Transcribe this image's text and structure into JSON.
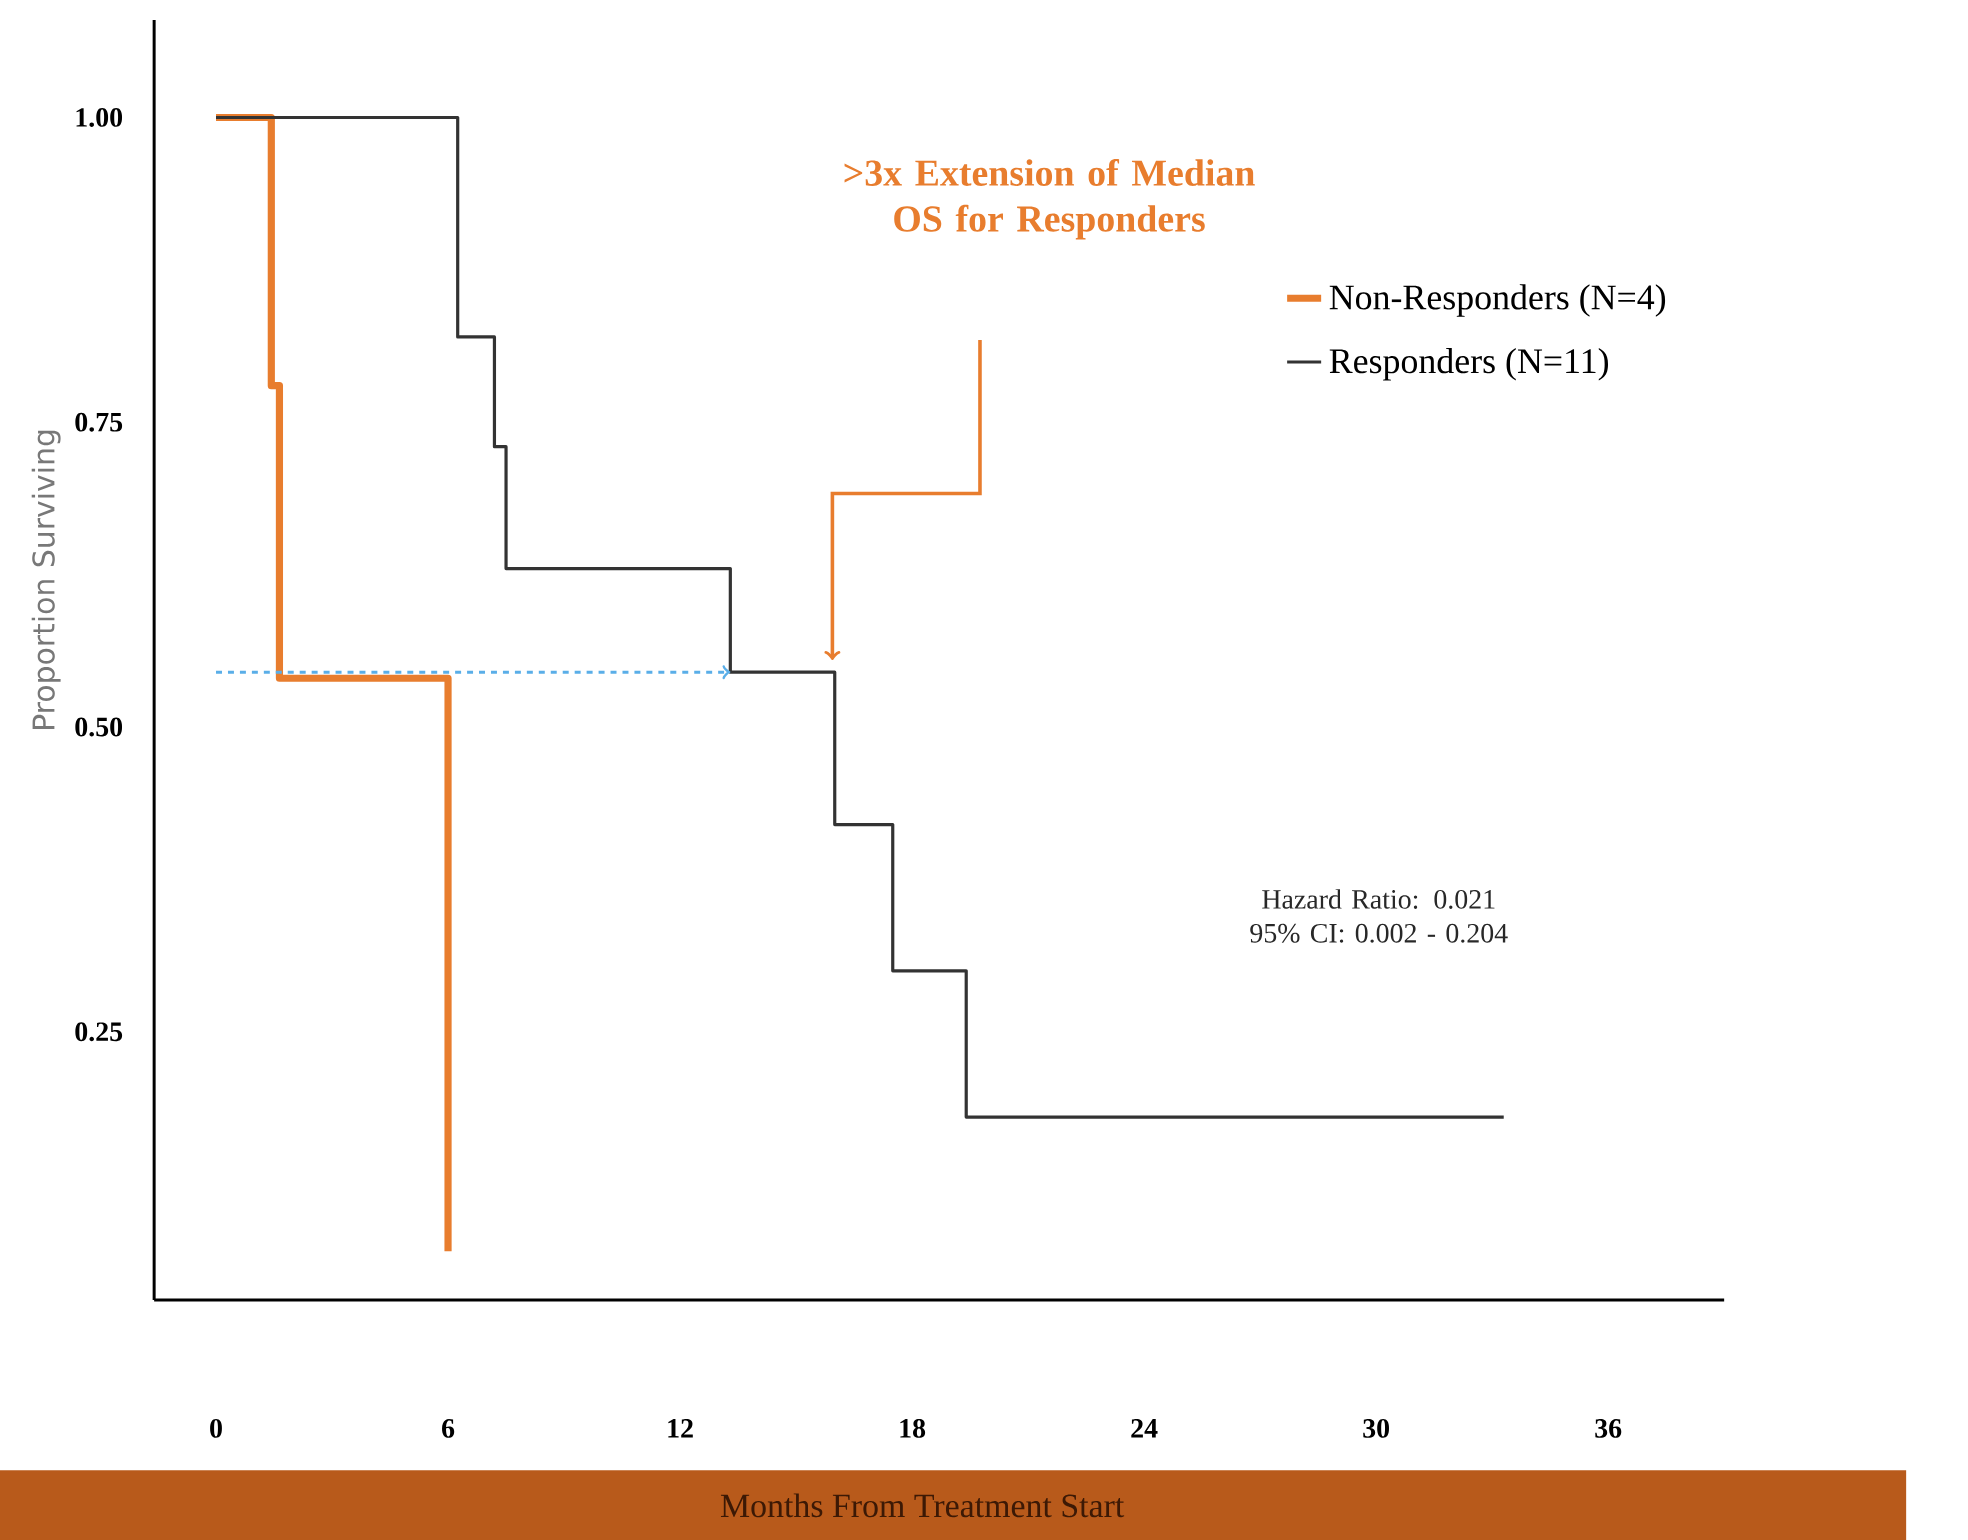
{
  "chart_data": {
    "type": "step",
    "xlabel": "Months From Treatment Start",
    "ylabel": "Proportion Surviving",
    "xlim": [
      -1.6,
      39
    ],
    "ylim": [
      0.03,
      1.08
    ],
    "xticks": [
      0,
      6,
      12,
      18,
      24,
      30,
      36
    ],
    "yticks": [
      {
        "value": 0.25,
        "label": "0.25"
      },
      {
        "value": 0.5,
        "label": "0.50"
      },
      {
        "value": 0.75,
        "label": "0.75"
      },
      {
        "value": 1,
        "label": "1.00"
      }
    ],
    "series": [
      {
        "name": "Non-Responders (N=4)",
        "color": "#e87d2e",
        "x": [
          0,
          1.43,
          1.64,
          6.0
        ],
        "values": [
          1.0,
          0.78,
          0.54,
          0.07
        ]
      },
      {
        "name": "Responders (N=11)",
        "color": "#333333",
        "x": [
          0,
          6.25,
          7.2,
          7.5,
          13.3,
          16.0,
          17.5,
          19.4,
          33.3
        ],
        "values": [
          1.0,
          0.82,
          0.73,
          0.63,
          0.545,
          0.42,
          0.3,
          0.18,
          0.18
        ]
      },
      {
        "type": "line",
        "color": "#5aaee8",
        "line_style": "dashed",
        "x": [
          0,
          13.3
        ],
        "values": [
          0.545,
          0.545
        ]
      }
    ],
    "annotations": [
      ">3x Extension of Median OS for Responders",
      "Hazard Ratio:  0.021 95% CI: 0.002 - 0.204"
    ],
    "legend": "top right",
    "grid": false
  }
}
